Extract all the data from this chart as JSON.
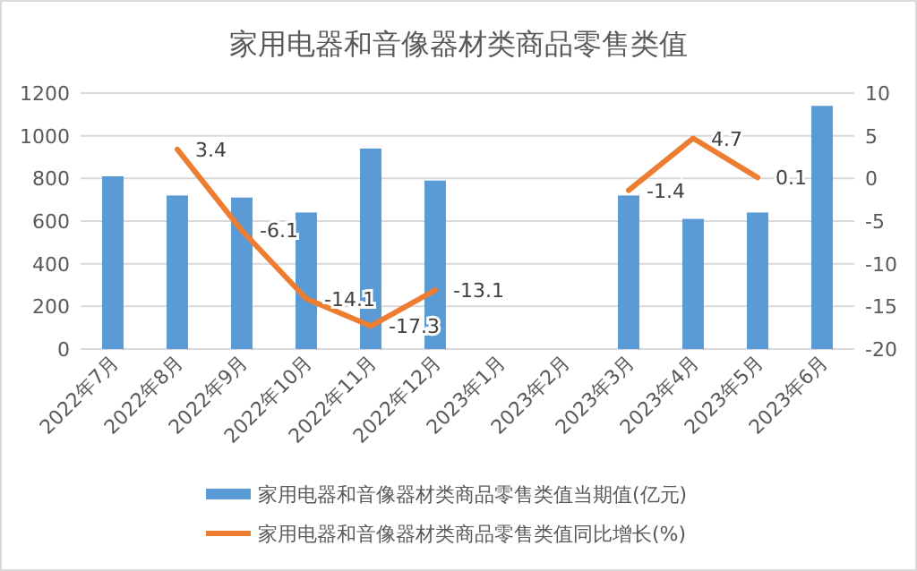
{
  "chart_data": {
    "type": "bar",
    "title": "家用电器和音像器材类商品零售类值",
    "categories": [
      "2022年7月",
      "2022年8月",
      "2022年9月",
      "2022年10月",
      "2022年11月",
      "2022年12月",
      "2023年1月",
      "2023年2月",
      "2023年3月",
      "2023年4月",
      "2023年5月",
      "2023年6月"
    ],
    "series": [
      {
        "name": "家用电器和音像器材类商品零售类值当期值(亿元)",
        "color": "#5b9bd5",
        "values": [
          810,
          720,
          710,
          640,
          940,
          790,
          null,
          null,
          720,
          610,
          640,
          1140
        ]
      },
      {
        "name": "家用电器和音像器材类商品零售类值同比增长(%)",
        "type": "line",
        "axis": "y2",
        "color": "#ed7d31",
        "data_labels": true,
        "values": [
          null,
          3.4,
          -6.1,
          -14.1,
          -17.3,
          -13.1,
          null,
          null,
          -1.4,
          4.7,
          0.1,
          null
        ]
      }
    ],
    "ylim": [
      0,
      1200
    ],
    "yticks": [
      0,
      200,
      400,
      600,
      800,
      1000,
      1200
    ],
    "y2lim": [
      -20,
      10
    ],
    "y2ticks": [
      -20,
      -15,
      -10,
      -5,
      0,
      5,
      10
    ],
    "grid": "y",
    "legend": "bottom"
  }
}
